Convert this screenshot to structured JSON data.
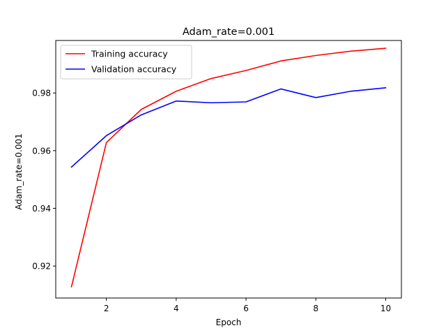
{
  "chart_data": {
    "type": "line",
    "title": "Adam_rate=0.001",
    "xlabel": "Epoch",
    "ylabel": "Adam_rate=0.001",
    "xlim": [
      0.55,
      10.45
    ],
    "ylim": [
      0.9089,
      0.9982
    ],
    "xticks": [
      2,
      4,
      6,
      8,
      10
    ],
    "yticks": [
      0.92,
      0.94,
      0.96,
      0.98
    ],
    "ytick_labels": [
      "0.92",
      "0.94",
      "0.96",
      "0.98"
    ],
    "legend": "upper left",
    "grid": false,
    "x": [
      1,
      2,
      3,
      4,
      5,
      6,
      7,
      8,
      9,
      10
    ],
    "series": [
      {
        "name": "Training accuracy",
        "color": "#ff0000",
        "values": [
          0.9128,
          0.9628,
          0.9743,
          0.9806,
          0.985,
          0.9878,
          0.9911,
          0.993,
          0.9945,
          0.9955
        ]
      },
      {
        "name": "Validation accuracy",
        "color": "#0000ff",
        "values": [
          0.9543,
          0.9652,
          0.9724,
          0.9772,
          0.9766,
          0.9769,
          0.9814,
          0.9784,
          0.9806,
          0.9818
        ]
      }
    ]
  }
}
